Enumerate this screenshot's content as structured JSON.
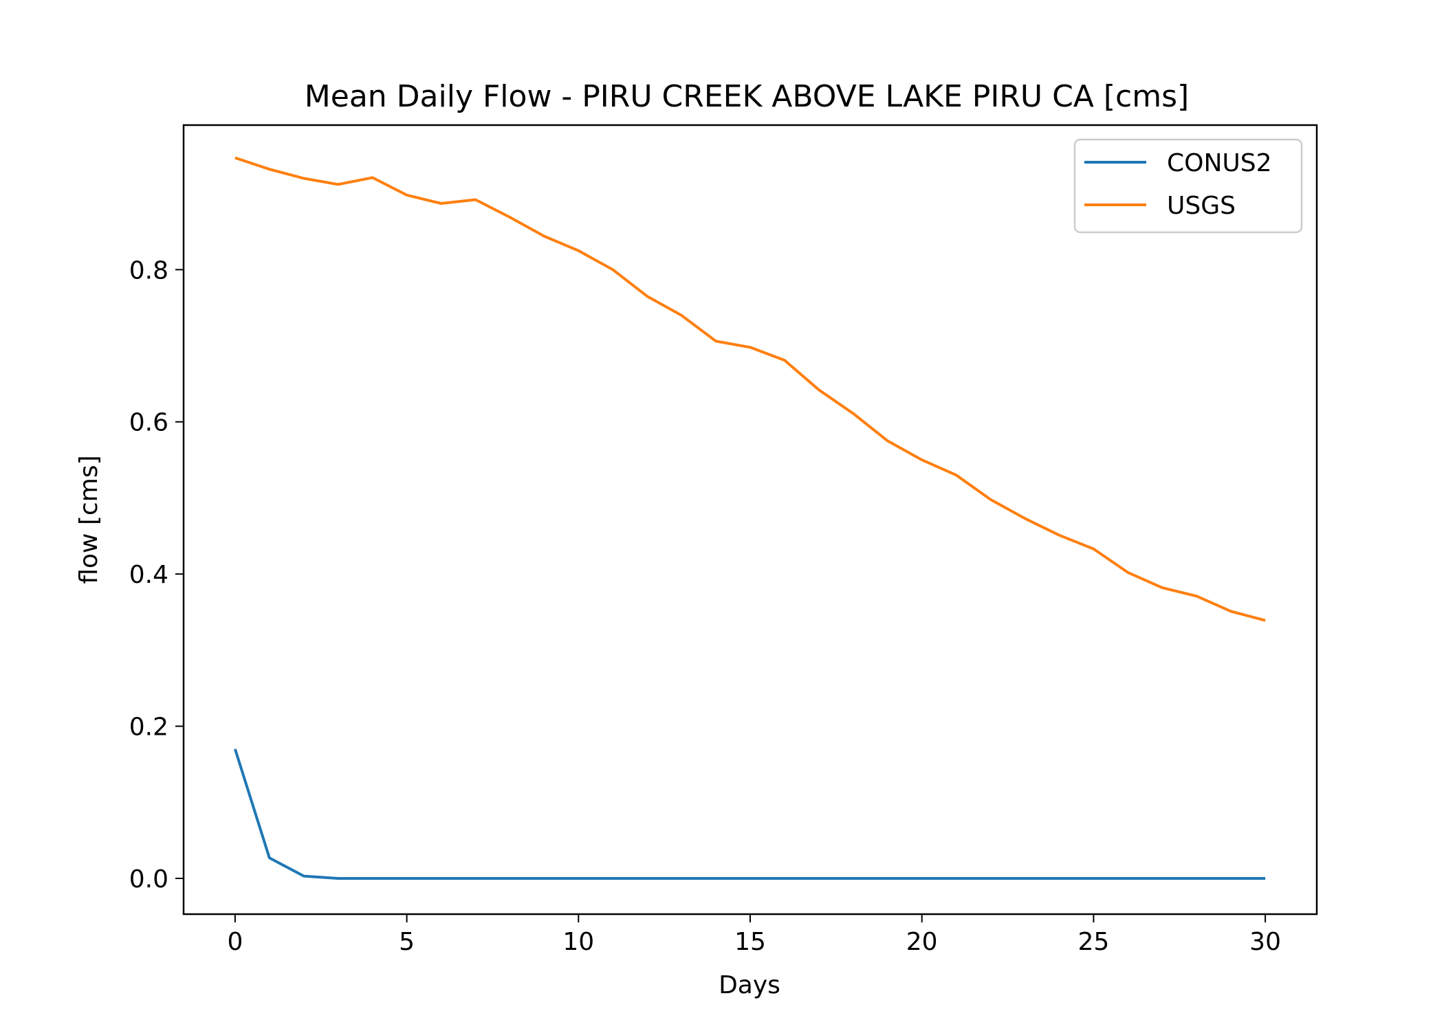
{
  "chart_data": {
    "type": "line",
    "title": "Mean Daily Flow - PIRU CREEK ABOVE LAKE PIRU CA [cms]",
    "xlabel": "Days",
    "ylabel": "flow [cms]",
    "xlim": [
      -1.5,
      31.5
    ],
    "ylim": [
      -0.047,
      0.99
    ],
    "xticks": [
      0,
      5,
      10,
      15,
      20,
      25,
      30
    ],
    "xtick_labels": [
      "0",
      "5",
      "10",
      "15",
      "20",
      "25",
      "30"
    ],
    "yticks": [
      0.0,
      0.2,
      0.4,
      0.6,
      0.8
    ],
    "ytick_labels": [
      "0.0",
      "0.2",
      "0.4",
      "0.6",
      "0.8"
    ],
    "grid": false,
    "legend_position": "top-right",
    "x": [
      0,
      1,
      2,
      3,
      4,
      5,
      6,
      7,
      8,
      9,
      10,
      11,
      12,
      13,
      14,
      15,
      16,
      17,
      18,
      19,
      20,
      21,
      22,
      23,
      24,
      25,
      26,
      27,
      28,
      29,
      30
    ],
    "series": [
      {
        "name": "CONUS2",
        "color": "#1f77b4",
        "values": [
          0.17,
          0.027,
          0.003,
          0.0,
          0.0,
          0.0,
          0.0,
          0.0,
          0.0,
          0.0,
          0.0,
          0.0,
          0.0,
          0.0,
          0.0,
          0.0,
          0.0,
          0.0,
          0.0,
          0.0,
          0.0,
          0.0,
          0.0,
          0.0,
          0.0,
          0.0,
          0.0,
          0.0,
          0.0,
          0.0,
          0.0
        ]
      },
      {
        "name": "USGS",
        "color": "#ff7f0e",
        "values": [
          0.947,
          0.932,
          0.92,
          0.912,
          0.921,
          0.898,
          0.887,
          0.892,
          0.869,
          0.844,
          0.825,
          0.8,
          0.765,
          0.74,
          0.706,
          0.698,
          0.681,
          0.642,
          0.611,
          0.575,
          0.55,
          0.53,
          0.498,
          0.473,
          0.451,
          0.433,
          0.402,
          0.382,
          0.371,
          0.351,
          0.339
        ]
      }
    ]
  }
}
